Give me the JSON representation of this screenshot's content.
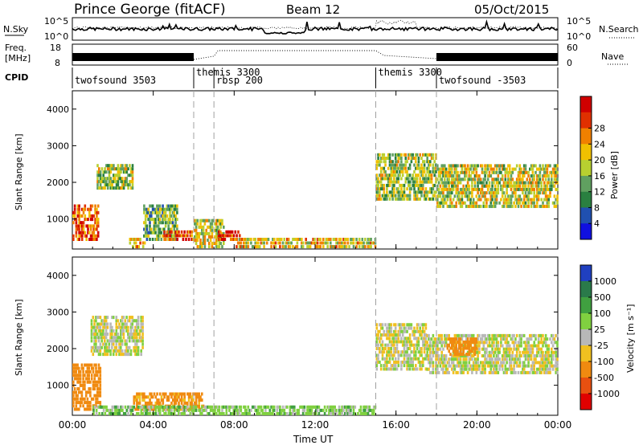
{
  "header": {
    "radar": "Prince George (fitACF)",
    "beam": "Beam 12",
    "date": "05/Oct/2015"
  },
  "noise_panel": {
    "left_label": "N.Sky",
    "right_label": "N.Search",
    "left_ticks": [
      "10^5",
      "10^0"
    ],
    "right_ticks": [
      "10^5",
      "10^0"
    ]
  },
  "freq_panel": {
    "left_label_1": "Freq.",
    "left_label_2": "[MHz]",
    "right_label": "Nave",
    "left_ticks": [
      "18",
      "8"
    ],
    "right_ticks": [
      "60",
      "0"
    ]
  },
  "cpid": {
    "label": "CPID",
    "segments": [
      {
        "name": "twofsound 3503",
        "start": 0,
        "end": 6
      },
      {
        "name": "themis 3300",
        "start": 6,
        "end": 7
      },
      {
        "name": "rbsp 200",
        "start": 7,
        "end": 15
      },
      {
        "name": "themis 3300",
        "start": 15,
        "end": 18
      },
      {
        "name": "twofsound -3503",
        "start": 18,
        "end": 24
      }
    ]
  },
  "chart_data": [
    {
      "type": "heatmap",
      "title": "",
      "xlabel": "Time UT",
      "ylabel": "Slant Range [km]",
      "xlim": [
        0,
        24
      ],
      "ylim": [
        180,
        4500
      ],
      "x_tick_labels": [
        "00:00",
        "04:00",
        "08:00",
        "12:00",
        "16:00",
        "20:00",
        "00:00"
      ],
      "y_ticks": [
        1000,
        2000,
        3000,
        4000
      ],
      "colorbar": {
        "label": "Power [dB]",
        "ticks": [
          "4",
          "8",
          "12",
          "16",
          "20",
          "24",
          "28"
        ],
        "range": [
          0,
          30
        ],
        "colors": [
          "#1010e0",
          "#2050b0",
          "#2a8040",
          "#60a060",
          "#b8d030",
          "#f0c000",
          "#f08000",
          "#e03000",
          "#d00000"
        ]
      },
      "regions": [
        {
          "time": [
            0.0,
            1.3
          ],
          "range": [
            400,
            1400
          ],
          "value": 24
        },
        {
          "time": [
            1.2,
            3.0
          ],
          "range": [
            1800,
            2500
          ],
          "value": 14
        },
        {
          "time": [
            2.8,
            3.6
          ],
          "range": [
            200,
            500
          ],
          "value": 20
        },
        {
          "time": [
            3.5,
            5.2
          ],
          "range": [
            400,
            1400
          ],
          "value": 12
        },
        {
          "time": [
            4.5,
            6.0
          ],
          "range": [
            400,
            700
          ],
          "value": 24
        },
        {
          "time": [
            6.0,
            7.5
          ],
          "range": [
            200,
            1000
          ],
          "value": 16
        },
        {
          "time": [
            7.2,
            8.3
          ],
          "range": [
            400,
            700
          ],
          "value": 26
        },
        {
          "time": [
            8.0,
            15.0
          ],
          "range": [
            200,
            500
          ],
          "value": 18
        },
        {
          "time": [
            15.0,
            18.0
          ],
          "range": [
            1500,
            2800
          ],
          "value": 14
        },
        {
          "time": [
            18.0,
            24.0
          ],
          "range": [
            1300,
            2500
          ],
          "value": 16
        }
      ]
    },
    {
      "type": "heatmap",
      "title": "",
      "xlabel": "Time UT",
      "ylabel": "Slant Range [km]",
      "xlim": [
        0,
        24
      ],
      "ylim": [
        180,
        4500
      ],
      "x_tick_labels": [
        "00:00",
        "04:00",
        "08:00",
        "12:00",
        "16:00",
        "20:00",
        "00:00"
      ],
      "y_ticks": [
        1000,
        2000,
        3000,
        4000
      ],
      "colorbar": {
        "label": "Velocity [m s⁻¹]",
        "ticks": [
          "1000",
          "500",
          "100",
          "25",
          "-25",
          "-100",
          "-500",
          "-1000"
        ],
        "colors": [
          "#2040c0",
          "#2a7a4a",
          "#40a040",
          "#80d040",
          "#b8b8b8",
          "#f0c020",
          "#f08a10",
          "#e85010",
          "#e00000"
        ]
      },
      "regions": [
        {
          "time": [
            0.0,
            1.4
          ],
          "range": [
            300,
            1600
          ],
          "value": -300
        },
        {
          "time": [
            0.9,
            3.5
          ],
          "range": [
            1800,
            2900
          ],
          "value": 0
        },
        {
          "time": [
            3.0,
            6.5
          ],
          "range": [
            300,
            800
          ],
          "value": -150
        },
        {
          "time": [
            1.0,
            15.0
          ],
          "range": [
            180,
            450
          ],
          "value": 60
        },
        {
          "time": [
            15.0,
            17.5
          ],
          "range": [
            1400,
            2700
          ],
          "value": 0
        },
        {
          "time": [
            17.5,
            24.0
          ],
          "range": [
            1300,
            2400
          ],
          "value": 0
        },
        {
          "time": [
            18.5,
            20.0
          ],
          "range": [
            1800,
            2300
          ],
          "value": -200
        }
      ]
    }
  ],
  "colors": {
    "axis": "#000000",
    "dashed_marker": "#a0a0a0"
  }
}
